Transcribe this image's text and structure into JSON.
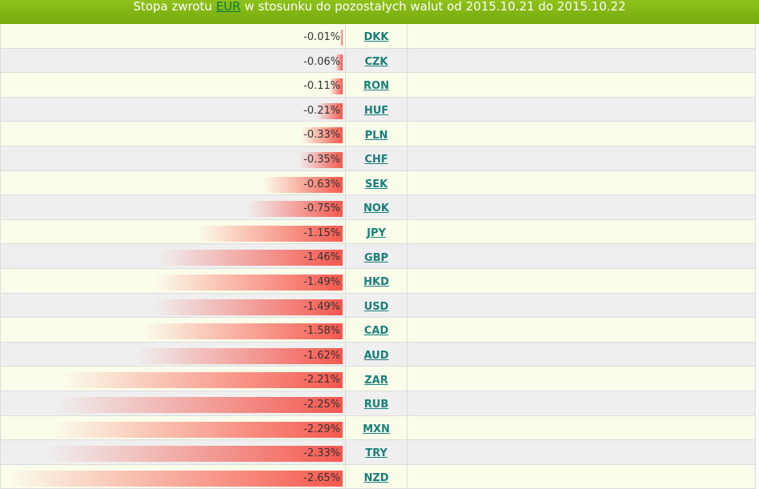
{
  "header": {
    "prefix": "Stopa zwrotu",
    "currency": "EUR",
    "suffix": "w stosunku do pozostałych walut od 2015.10.21 do 2015.10.22"
  },
  "colors": {
    "header_bg": "#80b515",
    "bar_color": "#f55046",
    "link_color": "#167f7a"
  },
  "chart_data": {
    "type": "bar",
    "orientation": "horizontal",
    "categories": [
      "DKK",
      "CZK",
      "RON",
      "HUF",
      "PLN",
      "CHF",
      "SEK",
      "NOK",
      "JPY",
      "GBP",
      "HKD",
      "USD",
      "CAD",
      "AUD",
      "ZAR",
      "RUB",
      "MXN",
      "TRY",
      "NZD"
    ],
    "values": [
      -0.01,
      -0.06,
      -0.11,
      -0.21,
      -0.33,
      -0.35,
      -0.63,
      -0.75,
      -1.15,
      -1.46,
      -1.49,
      -1.49,
      -1.58,
      -1.62,
      -2.21,
      -2.25,
      -2.29,
      -2.33,
      -2.65
    ],
    "labels": [
      "-0.01%",
      "-0.06%",
      "-0.11%",
      "-0.21%",
      "-0.33%",
      "-0.35%",
      "-0.63%",
      "-0.75%",
      "-1.15%",
      "-1.46%",
      "-1.49%",
      "-1.49%",
      "-1.58%",
      "-1.62%",
      "-2.21%",
      "-2.25%",
      "-2.29%",
      "-2.33%",
      "-2.65%"
    ],
    "title": "Stopa zwrotu EUR w stosunku do pozostałych walut od 2015.10.21 do 2015.10.22",
    "xlim": [
      -2.65,
      0
    ]
  }
}
